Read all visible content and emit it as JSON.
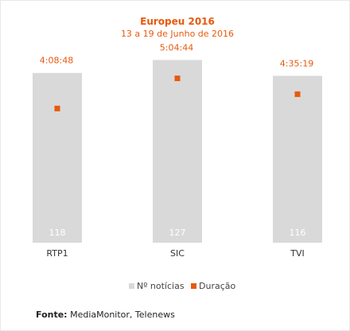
{
  "chart_data": {
    "type": "bar",
    "title": "Europeu 2016",
    "subtitle": "13 a 19 de Junho de 2016",
    "categories": [
      "RTP1",
      "SIC",
      "TVI"
    ],
    "series": [
      {
        "name": "Nº notícias",
        "type": "bar",
        "color": "#d9d9d9",
        "values": [
          118,
          127,
          116
        ],
        "labels": [
          "118",
          "127",
          "116"
        ]
      },
      {
        "name": "Duração",
        "type": "scatter",
        "color": "#e8590c",
        "values_seconds": [
          14928,
          18284,
          16519
        ],
        "labels": [
          "4:08:48",
          "5:04:44",
          "4:35:19"
        ]
      }
    ],
    "ylim": [
      0,
      135
    ],
    "ylim_duration_seconds": [
      0,
      21600
    ],
    "grid": false,
    "legend": "bottom-center"
  },
  "footer": {
    "label": "Fonte:",
    "text": " MediaMonitor, Telenews"
  },
  "colors": {
    "title": "#e8590c",
    "bar": "#d9d9d9",
    "marker": "#e8590c",
    "bar_label": "#ffffff",
    "axis_label": "#333333"
  }
}
